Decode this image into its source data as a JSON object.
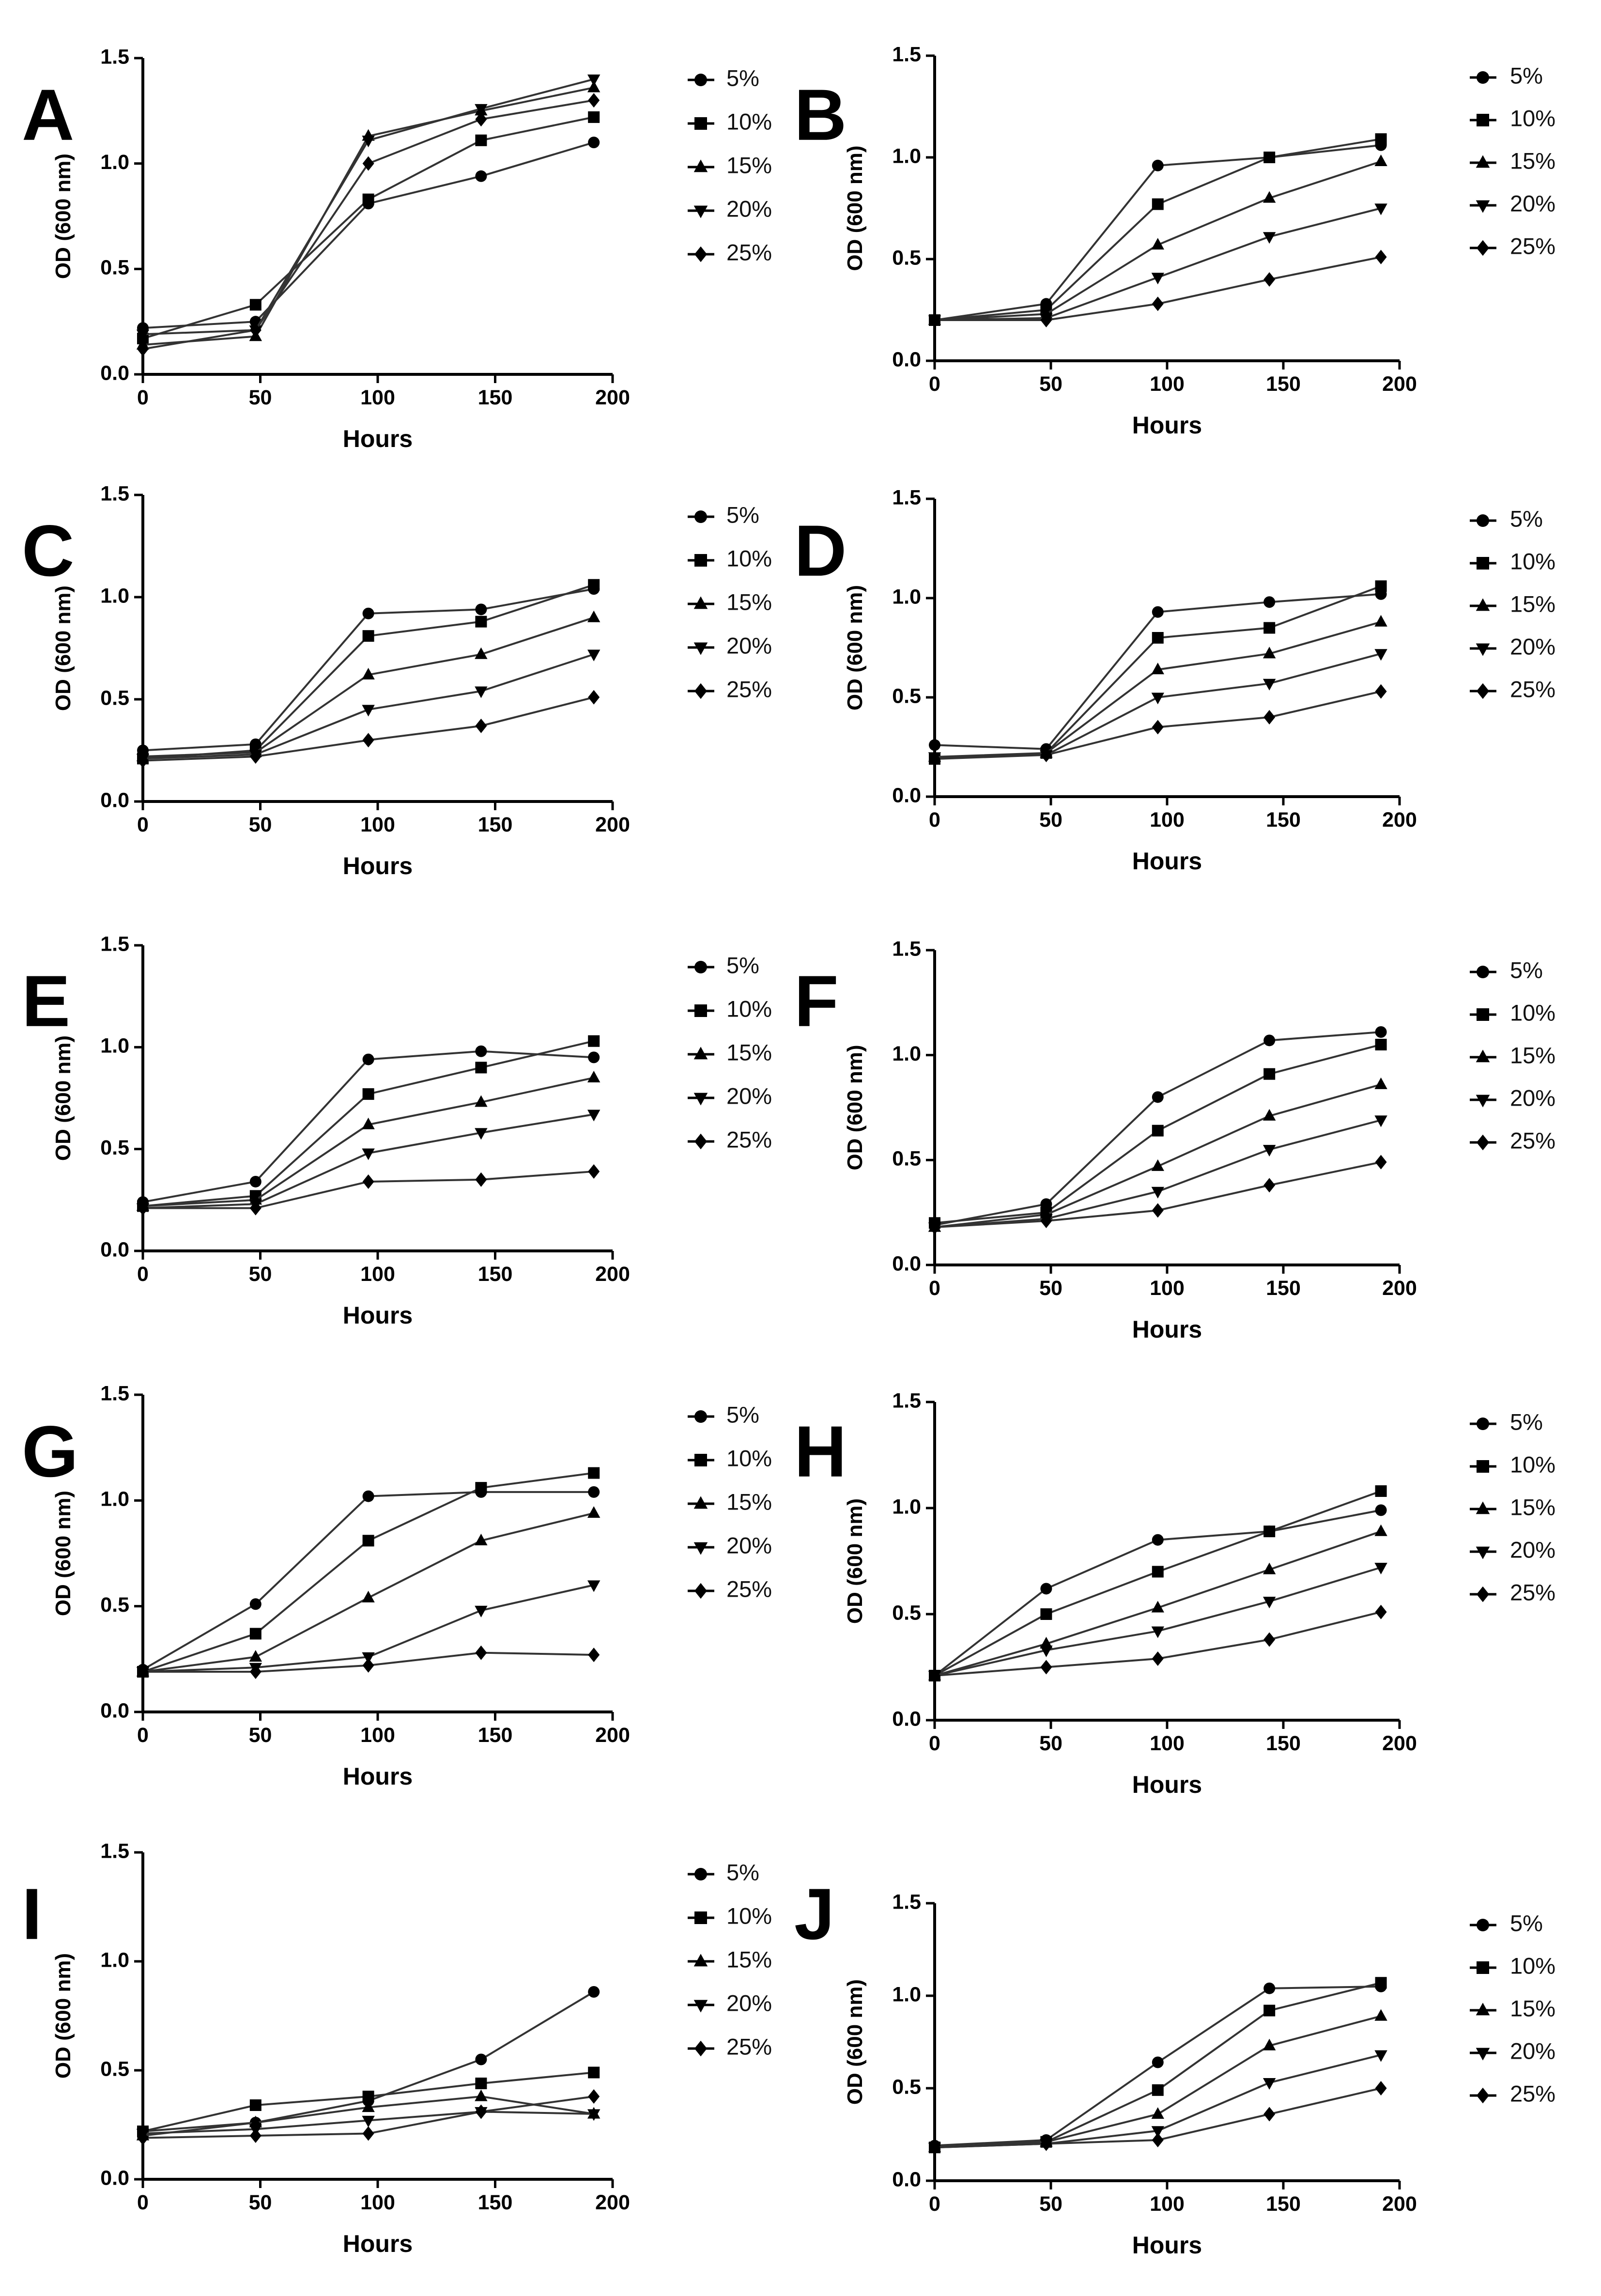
{
  "figure": {
    "legend_labels": [
      "5%",
      "10%",
      "15%",
      "20%",
      "25%"
    ]
  },
  "chart_data": [
    {
      "type": "line",
      "panel": "A",
      "xlabel": "Hours",
      "ylabel": "OD (600 nm)",
      "xlim": [
        0,
        200
      ],
      "ylim": [
        0,
        1.5
      ],
      "xticks": [
        "0",
        "50",
        "100",
        "150",
        "200"
      ],
      "yticks": [
        "0.0",
        "0.5",
        "1.0",
        "1.5"
      ],
      "x": [
        0,
        48,
        96,
        144,
        192
      ],
      "series": [
        {
          "name": "5%",
          "values": [
            0.22,
            0.25,
            0.81,
            0.94,
            1.1
          ]
        },
        {
          "name": "10%",
          "values": [
            0.17,
            0.33,
            0.83,
            1.11,
            1.22
          ]
        },
        {
          "name": "15%",
          "values": [
            0.14,
            0.18,
            1.13,
            1.25,
            1.36
          ]
        },
        {
          "name": "20%",
          "values": [
            0.19,
            0.21,
            1.11,
            1.26,
            1.4
          ]
        },
        {
          "name": "25%",
          "values": [
            0.12,
            0.21,
            1.0,
            1.21,
            1.3
          ]
        }
      ]
    },
    {
      "type": "line",
      "panel": "B",
      "xlabel": "Hours",
      "ylabel": "OD (600 nm)",
      "xlim": [
        0,
        200
      ],
      "ylim": [
        0,
        1.5
      ],
      "xticks": [
        "0",
        "50",
        "100",
        "150",
        "200"
      ],
      "yticks": [
        "0.0",
        "0.5",
        "1.0",
        "1.5"
      ],
      "x": [
        0,
        48,
        96,
        144,
        192
      ],
      "series": [
        {
          "name": "5%",
          "values": [
            0.2,
            0.28,
            0.96,
            1.0,
            1.06
          ]
        },
        {
          "name": "10%",
          "values": [
            0.2,
            0.25,
            0.77,
            1.0,
            1.09
          ]
        },
        {
          "name": "15%",
          "values": [
            0.2,
            0.23,
            0.57,
            0.8,
            0.98
          ]
        },
        {
          "name": "20%",
          "values": [
            0.2,
            0.21,
            0.41,
            0.61,
            0.75
          ]
        },
        {
          "name": "25%",
          "values": [
            0.2,
            0.2,
            0.28,
            0.4,
            0.51
          ]
        }
      ]
    },
    {
      "type": "line",
      "panel": "C",
      "xlabel": "Hours",
      "ylabel": "OD (600 nm)",
      "xlim": [
        0,
        200
      ],
      "ylim": [
        0,
        1.5
      ],
      "xticks": [
        "0",
        "50",
        "100",
        "150",
        "200"
      ],
      "yticks": [
        "0.0",
        "0.5",
        "1.0",
        "1.5"
      ],
      "x": [
        0,
        48,
        96,
        144,
        192
      ],
      "series": [
        {
          "name": "5%",
          "values": [
            0.25,
            0.28,
            0.92,
            0.94,
            1.04
          ]
        },
        {
          "name": "10%",
          "values": [
            0.21,
            0.25,
            0.81,
            0.88,
            1.06
          ]
        },
        {
          "name": "15%",
          "values": [
            0.22,
            0.24,
            0.62,
            0.72,
            0.9
          ]
        },
        {
          "name": "20%",
          "values": [
            0.21,
            0.23,
            0.45,
            0.54,
            0.72
          ]
        },
        {
          "name": "25%",
          "values": [
            0.2,
            0.22,
            0.3,
            0.37,
            0.51
          ]
        }
      ]
    },
    {
      "type": "line",
      "panel": "D",
      "xlabel": "Hours",
      "ylabel": "OD (600 nm)",
      "xlim": [
        0,
        200
      ],
      "ylim": [
        0,
        1.5
      ],
      "xticks": [
        "0",
        "50",
        "100",
        "150",
        "200"
      ],
      "yticks": [
        "0.0",
        "0.5",
        "1.0",
        "1.5"
      ],
      "x": [
        0,
        48,
        96,
        144,
        192
      ],
      "series": [
        {
          "name": "5%",
          "values": [
            0.26,
            0.24,
            0.93,
            0.98,
            1.02
          ]
        },
        {
          "name": "10%",
          "values": [
            0.19,
            0.22,
            0.8,
            0.85,
            1.06
          ]
        },
        {
          "name": "15%",
          "values": [
            0.2,
            0.22,
            0.64,
            0.72,
            0.88
          ]
        },
        {
          "name": "20%",
          "values": [
            0.2,
            0.21,
            0.5,
            0.57,
            0.72
          ]
        },
        {
          "name": "25%",
          "values": [
            0.19,
            0.21,
            0.35,
            0.4,
            0.53
          ]
        }
      ]
    },
    {
      "type": "line",
      "panel": "E",
      "xlabel": "Hours",
      "ylabel": "OD (600 nm)",
      "xlim": [
        0,
        200
      ],
      "ylim": [
        0,
        1.5
      ],
      "xticks": [
        "0",
        "50",
        "100",
        "150",
        "200"
      ],
      "yticks": [
        "0.0",
        "0.5",
        "1.0",
        "1.5"
      ],
      "x": [
        0,
        48,
        96,
        144,
        192
      ],
      "series": [
        {
          "name": "5%",
          "values": [
            0.24,
            0.34,
            0.94,
            0.98,
            0.95
          ]
        },
        {
          "name": "10%",
          "values": [
            0.22,
            0.27,
            0.77,
            0.9,
            1.03
          ]
        },
        {
          "name": "15%",
          "values": [
            0.22,
            0.25,
            0.62,
            0.73,
            0.85
          ]
        },
        {
          "name": "20%",
          "values": [
            0.21,
            0.23,
            0.48,
            0.58,
            0.67
          ]
        },
        {
          "name": "25%",
          "values": [
            0.21,
            0.21,
            0.34,
            0.35,
            0.39
          ]
        }
      ]
    },
    {
      "type": "line",
      "panel": "F",
      "xlabel": "Hours",
      "ylabel": "OD (600 nm)",
      "xlim": [
        0,
        200
      ],
      "ylim": [
        0,
        1.5
      ],
      "xticks": [
        "0",
        "50",
        "100",
        "150",
        "200"
      ],
      "yticks": [
        "0.0",
        "0.5",
        "1.0",
        "1.5"
      ],
      "x": [
        0,
        48,
        96,
        144,
        192
      ],
      "series": [
        {
          "name": "5%",
          "values": [
            0.19,
            0.29,
            0.8,
            1.07,
            1.11
          ]
        },
        {
          "name": "10%",
          "values": [
            0.2,
            0.25,
            0.64,
            0.91,
            1.05
          ]
        },
        {
          "name": "15%",
          "values": [
            0.18,
            0.24,
            0.47,
            0.71,
            0.86
          ]
        },
        {
          "name": "20%",
          "values": [
            0.18,
            0.22,
            0.35,
            0.55,
            0.69
          ]
        },
        {
          "name": "25%",
          "values": [
            0.18,
            0.21,
            0.26,
            0.38,
            0.49
          ]
        }
      ]
    },
    {
      "type": "line",
      "panel": "G",
      "xlabel": "Hours",
      "ylabel": "OD (600 nm)",
      "xlim": [
        0,
        200
      ],
      "ylim": [
        0,
        1.5
      ],
      "xticks": [
        "0",
        "50",
        "100",
        "150",
        "200"
      ],
      "yticks": [
        "0.0",
        "0.5",
        "1.0",
        "1.5"
      ],
      "x": [
        0,
        48,
        96,
        144,
        192
      ],
      "series": [
        {
          "name": "5%",
          "values": [
            0.2,
            0.51,
            1.02,
            1.04,
            1.04
          ]
        },
        {
          "name": "10%",
          "values": [
            0.19,
            0.37,
            0.81,
            1.06,
            1.13
          ]
        },
        {
          "name": "15%",
          "values": [
            0.19,
            0.26,
            0.54,
            0.81,
            0.94
          ]
        },
        {
          "name": "20%",
          "values": [
            0.19,
            0.21,
            0.26,
            0.48,
            0.6
          ]
        },
        {
          "name": "25%",
          "values": [
            0.19,
            0.19,
            0.22,
            0.28,
            0.27
          ]
        }
      ]
    },
    {
      "type": "line",
      "panel": "H",
      "xlabel": "Hours",
      "ylabel": "OD (600 nm)",
      "xlim": [
        0,
        200
      ],
      "ylim": [
        0,
        1.5
      ],
      "xticks": [
        "0",
        "50",
        "100",
        "150",
        "200"
      ],
      "yticks": [
        "0.0",
        "0.5",
        "1.0",
        "1.5"
      ],
      "x": [
        0,
        48,
        96,
        144,
        192
      ],
      "series": [
        {
          "name": "5%",
          "values": [
            0.21,
            0.62,
            0.85,
            0.89,
            0.99
          ]
        },
        {
          "name": "10%",
          "values": [
            0.21,
            0.5,
            0.7,
            0.89,
            1.08
          ]
        },
        {
          "name": "15%",
          "values": [
            0.21,
            0.36,
            0.53,
            0.71,
            0.89
          ]
        },
        {
          "name": "20%",
          "values": [
            0.21,
            0.33,
            0.42,
            0.56,
            0.72
          ]
        },
        {
          "name": "25%",
          "values": [
            0.21,
            0.25,
            0.29,
            0.38,
            0.51
          ]
        }
      ]
    },
    {
      "type": "line",
      "panel": "I",
      "xlabel": "Hours",
      "ylabel": "OD (600 nm)",
      "xlim": [
        0,
        200
      ],
      "ylim": [
        0,
        1.5
      ],
      "xticks": [
        "0",
        "50",
        "100",
        "150",
        "200"
      ],
      "yticks": [
        "0.0",
        "0.5",
        "1.0",
        "1.5"
      ],
      "x": [
        0,
        48,
        96,
        144,
        192
      ],
      "series": [
        {
          "name": "5%",
          "values": [
            0.22,
            0.26,
            0.36,
            0.55,
            0.86
          ]
        },
        {
          "name": "10%",
          "values": [
            0.22,
            0.34,
            0.38,
            0.44,
            0.49
          ]
        },
        {
          "name": "15%",
          "values": [
            0.2,
            0.26,
            0.33,
            0.38,
            0.3
          ]
        },
        {
          "name": "20%",
          "values": [
            0.21,
            0.23,
            0.27,
            0.31,
            0.3
          ]
        },
        {
          "name": "25%",
          "values": [
            0.19,
            0.2,
            0.21,
            0.31,
            0.38
          ]
        }
      ]
    },
    {
      "type": "line",
      "panel": "J",
      "xlabel": "Hours",
      "ylabel": "OD (600 nm)",
      "xlim": [
        0,
        200
      ],
      "ylim": [
        0,
        1.5
      ],
      "xticks": [
        "0",
        "50",
        "100",
        "150",
        "200"
      ],
      "yticks": [
        "0.0",
        "0.5",
        "1.0",
        "1.5"
      ],
      "x": [
        0,
        48,
        96,
        144,
        192
      ],
      "series": [
        {
          "name": "5%",
          "values": [
            0.19,
            0.22,
            0.64,
            1.04,
            1.05
          ]
        },
        {
          "name": "10%",
          "values": [
            0.18,
            0.21,
            0.49,
            0.92,
            1.07
          ]
        },
        {
          "name": "15%",
          "values": [
            0.18,
            0.21,
            0.36,
            0.73,
            0.89
          ]
        },
        {
          "name": "20%",
          "values": [
            0.18,
            0.2,
            0.27,
            0.53,
            0.68
          ]
        },
        {
          "name": "25%",
          "values": [
            0.18,
            0.2,
            0.22,
            0.36,
            0.5
          ]
        }
      ]
    }
  ]
}
